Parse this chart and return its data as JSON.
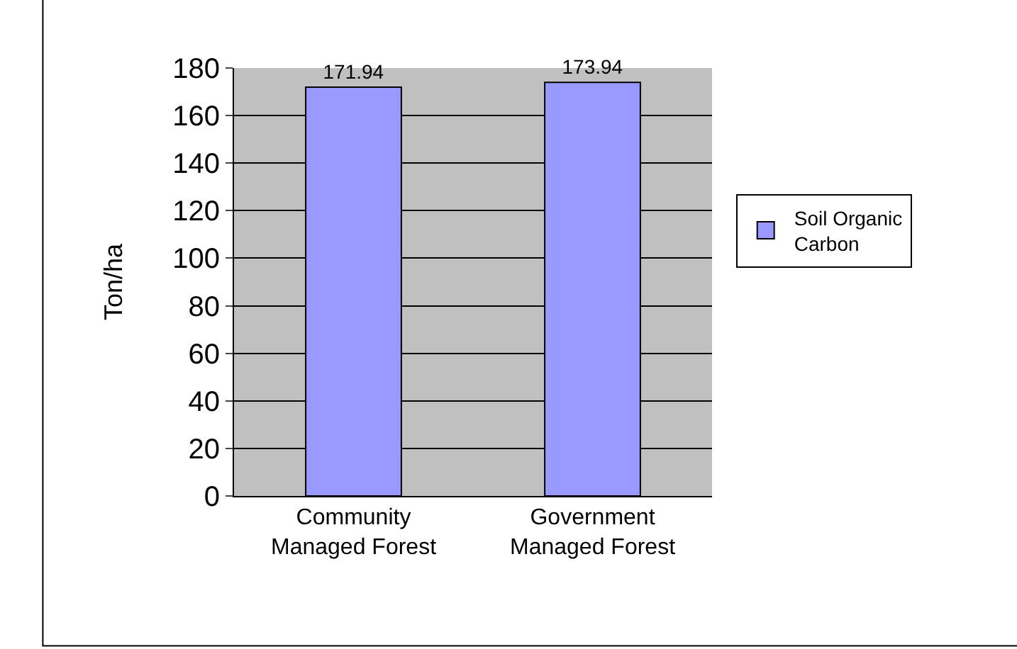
{
  "chart_data": {
    "type": "bar",
    "ylabel": "Ton/ha",
    "categories": [
      "Community\nManaged Forest",
      "Government\nManaged Forest"
    ],
    "series": [
      {
        "name": "Soil Organic\nCarbon",
        "color": "#9999ff",
        "values": [
          171.94,
          173.94
        ]
      }
    ],
    "ylim": [
      0,
      180
    ],
    "yticks": [
      0,
      20,
      40,
      60,
      80,
      100,
      120,
      140,
      160,
      180
    ],
    "grid": "y",
    "legend": "right",
    "data_labels": true
  }
}
